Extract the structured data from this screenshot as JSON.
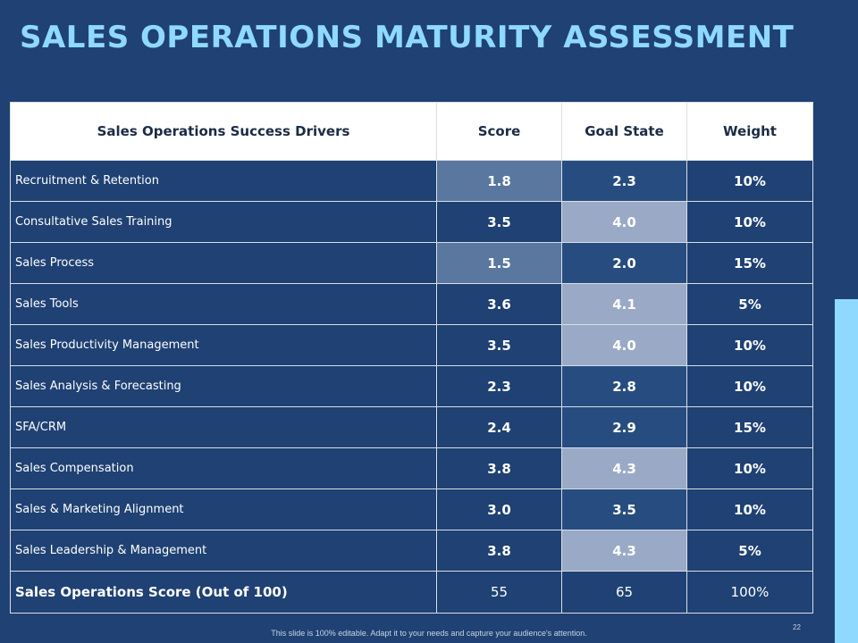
{
  "title": "SALES OPERATIONS MATURITY ASSESSMENT",
  "colors": {
    "background": "#1f4173",
    "title": "#8fd9ff",
    "shade_dark": "#274d80",
    "shade_medium": "#59779f",
    "shade_light": "#9aaac6",
    "accent_bar": "#8fd9ff"
  },
  "table": {
    "headers": [
      "Sales Operations Success Drivers",
      "Score",
      "Goal State",
      "Weight"
    ],
    "rows": [
      {
        "driver": "Recruitment & Retention",
        "score": "1.8",
        "goal": "2.3",
        "weight": "10%",
        "score_shade": "medium",
        "goal_shade": "dark"
      },
      {
        "driver": "Consultative Sales Training",
        "score": "3.5",
        "goal": "4.0",
        "weight": "10%",
        "score_shade": "none",
        "goal_shade": "light"
      },
      {
        "driver": "Sales Process",
        "score": "1.5",
        "goal": "2.0",
        "weight": "15%",
        "score_shade": "medium",
        "goal_shade": "dark"
      },
      {
        "driver": "Sales Tools",
        "score": "3.6",
        "goal": "4.1",
        "weight": "5%",
        "score_shade": "none",
        "goal_shade": "light"
      },
      {
        "driver": "Sales Productivity Management",
        "score": "3.5",
        "goal": "4.0",
        "weight": "10%",
        "score_shade": "none",
        "goal_shade": "light"
      },
      {
        "driver": "Sales Analysis & Forecasting",
        "score": "2.3",
        "goal": "2.8",
        "weight": "10%",
        "score_shade": "none",
        "goal_shade": "dark"
      },
      {
        "driver": "SFA/CRM",
        "score": "2.4",
        "goal": "2.9",
        "weight": "15%",
        "score_shade": "none",
        "goal_shade": "dark"
      },
      {
        "driver": "Sales Compensation",
        "score": "3.8",
        "goal": "4.3",
        "weight": "10%",
        "score_shade": "none",
        "goal_shade": "light"
      },
      {
        "driver": "Sales & Marketing Alignment",
        "score": "3.0",
        "goal": "3.5",
        "weight": "10%",
        "score_shade": "none",
        "goal_shade": "dark"
      },
      {
        "driver": "Sales Leadership & Management",
        "score": "3.8",
        "goal": "4.3",
        "weight": "5%",
        "score_shade": "none",
        "goal_shade": "light"
      }
    ],
    "total": {
      "label": "Sales Operations Score (Out of 100)",
      "score": "55",
      "goal": "65",
      "weight": "100%"
    }
  },
  "footnote": "This slide is 100% editable. Adapt it to your needs and capture your audience's attention.",
  "page_number": "22"
}
